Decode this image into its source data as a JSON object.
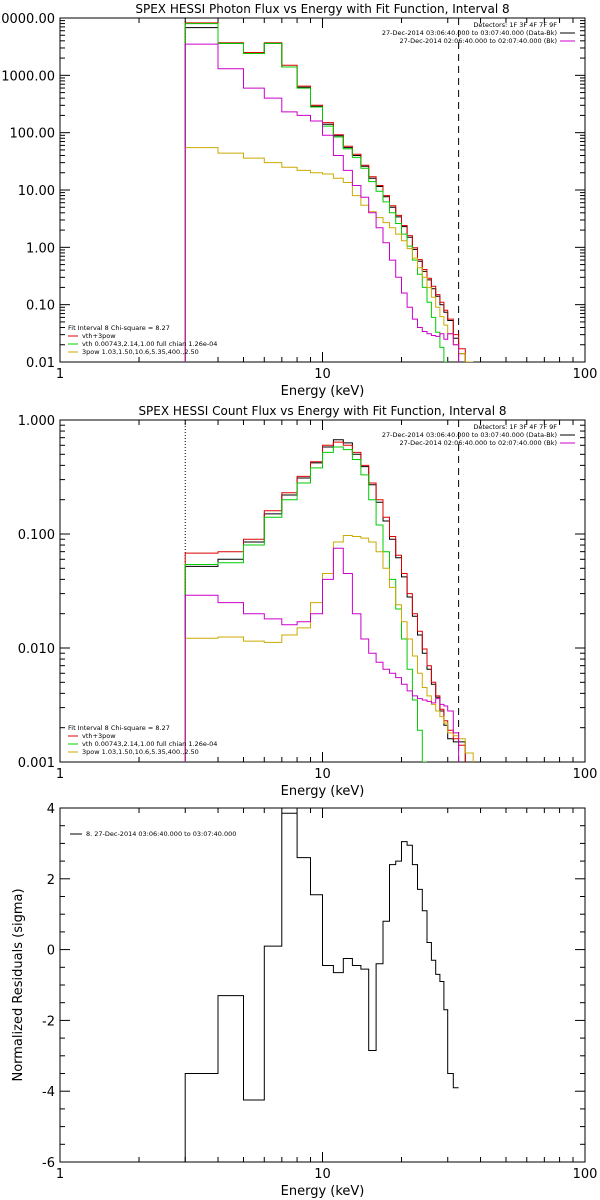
{
  "chart_data": [
    {
      "id": "photon",
      "type": "line",
      "title": "SPEX HESSI Photon Flux vs Energy with Fit Function, Interval 8",
      "xlabel": "Energy (keV)",
      "ylabel": "",
      "xscale": "log",
      "yscale": "log",
      "xlim": [
        1,
        100
      ],
      "ylim": [
        0.01,
        10000
      ],
      "xticks": [
        1,
        10,
        100
      ],
      "xtick_labels": [
        "1",
        "10",
        "100"
      ],
      "yticks": [
        0.01,
        0.1,
        1,
        10,
        100,
        1000,
        10000
      ],
      "ytick_labels": [
        "0.01",
        "0.10",
        "1.00",
        "10.00",
        "100.00",
        "1000.00",
        "10000.00"
      ],
      "grid": false,
      "vlines": [
        {
          "x": 3.0,
          "style": "dotted",
          "color": "#000000"
        },
        {
          "x": 33.0,
          "style": "dashed",
          "color": "#000000"
        }
      ],
      "legend_top_right": [
        {
          "text": "Detectors: 1F 3F 4F 7F 9F",
          "color": ""
        },
        {
          "text": "27-Dec-2014 03:06:40.000 to 03:07:40.000 (Data-Bk)",
          "color": "#000000"
        },
        {
          "text": "27-Dec-2014 02:06:40.000 to 02:07:40.000 (Bk)",
          "color": "#cc00cc"
        }
      ],
      "legend_bottom_left": [
        {
          "text": "Fit Interval 8   Chi-square = 8.27",
          "color": ""
        },
        {
          "text": "vth+3pow",
          "color": "#dd0000"
        },
        {
          "text": "vth 0.00743,2.14,1.00  full chian 1.26e-04",
          "color": "#00cc00"
        },
        {
          "text": "3pow 1.03,1.50,10.6,5.35,400.,2.50",
          "color": "#ccaa00"
        }
      ],
      "x_edges": [
        3.0,
        4.0,
        5.0,
        6.0,
        7.0,
        8.0,
        9.0,
        10.0,
        11.0,
        12.0,
        13.0,
        14.0,
        15.0,
        16.0,
        17.0,
        18.0,
        19.0,
        20.0,
        21.0,
        22.0,
        23.0,
        24.0,
        25.0,
        26.0,
        27.0,
        28.0,
        29.0,
        30.0,
        31.5,
        33.0,
        35.0,
        37.5,
        40.0
      ],
      "series": [
        {
          "key": "data",
          "color": "#000000",
          "values": [
            6800,
            3600,
            2400,
            3600,
            1400,
            620,
            290,
            140,
            88,
            55,
            40,
            26,
            16,
            11.5,
            7.6,
            5.0,
            3.4,
            2.3,
            1.5,
            0.92,
            0.57,
            0.38,
            0.27,
            0.19,
            0.14,
            0.1,
            0.074,
            0.053,
            0.026,
            0.014,
            null,
            null
          ]
        },
        {
          "key": "fit-total",
          "color": "#dd0000",
          "values": [
            8200,
            3700,
            2500,
            3700,
            1500,
            650,
            300,
            150,
            92,
            58,
            42,
            27,
            17,
            12,
            8.0,
            5.3,
            3.6,
            2.4,
            1.6,
            0.98,
            0.61,
            0.41,
            0.29,
            0.21,
            0.15,
            0.11,
            0.08,
            0.056,
            0.03,
            0.017,
            null,
            null
          ]
        },
        {
          "key": "fit-vth",
          "color": "#00cc00",
          "values": [
            8000,
            3600,
            2400,
            3600,
            1400,
            600,
            280,
            130,
            84,
            52,
            37,
            24,
            14,
            9.5,
            6.2,
            4.0,
            2.6,
            1.7,
            1.05,
            0.6,
            0.34,
            0.2,
            0.11,
            0.06,
            0.033,
            0.018,
            0.01,
            null,
            null,
            null,
            null,
            null
          ]
        },
        {
          "key": "fit-3pow",
          "color": "#ccaa00",
          "values": [
            55,
            44,
            36,
            30,
            25,
            22,
            20,
            19,
            16,
            13.5,
            8.0,
            5.4,
            4.2,
            3.3,
            2.7,
            2.2,
            1.7,
            1.3,
            0.95,
            0.65,
            0.44,
            0.3,
            0.2,
            0.135,
            0.09,
            0.062,
            0.044,
            0.031,
            0.02,
            0.014,
            0.01,
            null
          ]
        },
        {
          "key": "background",
          "color": "#cc00cc",
          "values": [
            3500,
            1300,
            600,
            400,
            230,
            200,
            160,
            90,
            40,
            22,
            12,
            7.5,
            4.0,
            2.2,
            1.2,
            0.6,
            0.3,
            0.16,
            0.09,
            0.056,
            0.04,
            0.034,
            0.031,
            0.029,
            0.028,
            0.031,
            0.025,
            0.031,
            0.02,
            null,
            null,
            null
          ]
        }
      ]
    },
    {
      "id": "count",
      "type": "line",
      "title": "SPEX HESSI Count Flux vs Energy with Fit Function, Interval 8",
      "xlabel": "Energy (keV)",
      "ylabel": "",
      "xscale": "log",
      "yscale": "log",
      "xlim": [
        1,
        100
      ],
      "ylim": [
        0.001,
        1
      ],
      "xticks": [
        1,
        10,
        100
      ],
      "xtick_labels": [
        "1",
        "10",
        "100"
      ],
      "yticks": [
        0.001,
        0.01,
        0.1,
        1
      ],
      "ytick_labels": [
        "0.001",
        "0.010",
        "0.100",
        "1.000"
      ],
      "grid": false,
      "vlines": [
        {
          "x": 3.0,
          "style": "dotted",
          "color": "#000000"
        },
        {
          "x": 33.0,
          "style": "dashed",
          "color": "#000000"
        }
      ],
      "legend_top_right": [
        {
          "text": "Detectors: 1F 3F 4F 7F 9F",
          "color": ""
        },
        {
          "text": "27-Dec-2014 03:06:40.000 to 03:07:40.000 (Data-Bk)",
          "color": "#000000"
        },
        {
          "text": "27-Dec-2014 02:06:40.000 to 02:07:40.000 (Bk)",
          "color": "#cc00cc"
        }
      ],
      "legend_bottom_left": [
        {
          "text": "Fit Interval 8   Chi-square = 8.27",
          "color": ""
        },
        {
          "text": "vth+3pow",
          "color": "#dd0000"
        },
        {
          "text": "vth 0.00743,2.14,1.00  full chian 1.26e-04",
          "color": "#00cc00"
        },
        {
          "text": "3pow 1.03,1.50,10.6,5.35,400.,2.50",
          "color": "#ccaa00"
        }
      ],
      "x_edges": [
        3.0,
        4.0,
        5.0,
        6.0,
        7.0,
        8.0,
        9.0,
        10.0,
        11.0,
        12.0,
        13.0,
        14.0,
        15.0,
        16.0,
        17.0,
        18.0,
        19.0,
        20.0,
        21.0,
        22.0,
        23.0,
        24.0,
        25.0,
        26.0,
        27.0,
        28.0,
        29.0,
        30.0,
        31.5,
        33.0,
        35.0,
        37.5,
        40.0
      ],
      "series": [
        {
          "key": "data",
          "color": "#000000",
          "values": [
            0.052,
            0.06,
            0.085,
            0.15,
            0.22,
            0.31,
            0.42,
            0.58,
            0.67,
            0.63,
            0.5,
            0.39,
            0.27,
            0.19,
            0.13,
            0.09,
            0.062,
            0.042,
            0.028,
            0.019,
            0.013,
            0.009,
            0.0065,
            0.0048,
            0.0037,
            0.0028,
            0.0021,
            0.0016,
            0.0015,
            0.0015,
            null,
            null
          ]
        },
        {
          "key": "fit-total",
          "color": "#dd0000",
          "values": [
            0.068,
            0.07,
            0.09,
            0.16,
            0.23,
            0.32,
            0.43,
            0.6,
            0.64,
            0.6,
            0.52,
            0.4,
            0.28,
            0.2,
            0.14,
            0.095,
            0.065,
            0.045,
            0.03,
            0.02,
            0.014,
            0.0098,
            0.007,
            0.005,
            0.0038,
            0.0029,
            0.0023,
            0.0019,
            0.0016,
            0.0014,
            null,
            null
          ]
        },
        {
          "key": "fit-vth",
          "color": "#00cc00",
          "values": [
            0.054,
            0.056,
            0.08,
            0.14,
            0.2,
            0.28,
            0.38,
            0.52,
            0.58,
            0.55,
            0.45,
            0.33,
            0.2,
            0.12,
            0.07,
            0.04,
            0.022,
            0.012,
            0.0065,
            0.0035,
            0.0019,
            0.001,
            null,
            null,
            null,
            null,
            null,
            null,
            null,
            null,
            null,
            null
          ]
        },
        {
          "key": "fit-3pow",
          "color": "#ccaa00",
          "values": [
            0.0122,
            0.0125,
            0.0115,
            0.0112,
            0.013,
            0.015,
            0.025,
            0.045,
            0.085,
            0.097,
            0.095,
            0.092,
            0.085,
            0.07,
            0.05,
            0.034,
            0.024,
            0.017,
            0.012,
            0.0085,
            0.006,
            0.0045,
            0.0038,
            0.0032,
            0.0028,
            0.0025,
            0.0022,
            0.0018,
            0.0017,
            0.0016,
            0.0012,
            null
          ]
        },
        {
          "key": "background",
          "color": "#cc00cc",
          "values": [
            0.029,
            0.025,
            0.02,
            0.018,
            0.016,
            0.017,
            0.02,
            0.04,
            0.075,
            0.045,
            0.02,
            0.012,
            0.009,
            0.0075,
            0.0065,
            0.006,
            0.0055,
            0.0048,
            0.0042,
            0.0038,
            0.0036,
            0.0035,
            0.0034,
            0.0033,
            0.0036,
            0.0032,
            0.0031,
            0.0028,
            0.0018,
            null,
            null,
            null
          ]
        }
      ]
    },
    {
      "id": "residuals",
      "type": "line",
      "title": "",
      "xlabel": "Energy (keV)",
      "ylabel": "Normalized Residuals (sigma)",
      "xscale": "log",
      "yscale": "linear",
      "xlim": [
        1,
        100
      ],
      "ylim": [
        -6,
        4
      ],
      "xticks": [
        1,
        10,
        100
      ],
      "xtick_labels": [
        "1",
        "10",
        "100"
      ],
      "yticks": [
        -6,
        -4,
        -2,
        0,
        2,
        4
      ],
      "ytick_labels": [
        "-6",
        "-4",
        "-2",
        "0",
        "2",
        "4"
      ],
      "grid": false,
      "vlines": [],
      "legend_top_right": [],
      "legend_bottom_left": [],
      "legend_top_left": [
        {
          "text": "8. 27-Dec-2014 03:06:40.000 to 03:07:40.000",
          "color": "#000000"
        }
      ],
      "x_edges": [
        3.0,
        4.0,
        5.0,
        6.0,
        7.0,
        8.0,
        9.0,
        10.0,
        11.0,
        12.0,
        13.0,
        14.0,
        15.0,
        16.0,
        17.0,
        18.0,
        19.0,
        20.0,
        21.0,
        22.0,
        23.0,
        24.0,
        25.0,
        26.0,
        27.0,
        28.0,
        29.0,
        30.0,
        31.5,
        33.0
      ],
      "series": [
        {
          "key": "residual",
          "color": "#000000",
          "values": [
            -3.5,
            -1.3,
            -4.25,
            0.1,
            3.85,
            2.6,
            1.55,
            -0.45,
            -0.65,
            -0.25,
            -0.45,
            -0.55,
            -2.85,
            -0.4,
            0.8,
            2.4,
            2.5,
            3.05,
            2.95,
            2.4,
            1.7,
            1.1,
            0.2,
            -0.3,
            -0.7,
            -0.9,
            -1.7,
            -3.5,
            -3.9
          ]
        }
      ]
    }
  ]
}
